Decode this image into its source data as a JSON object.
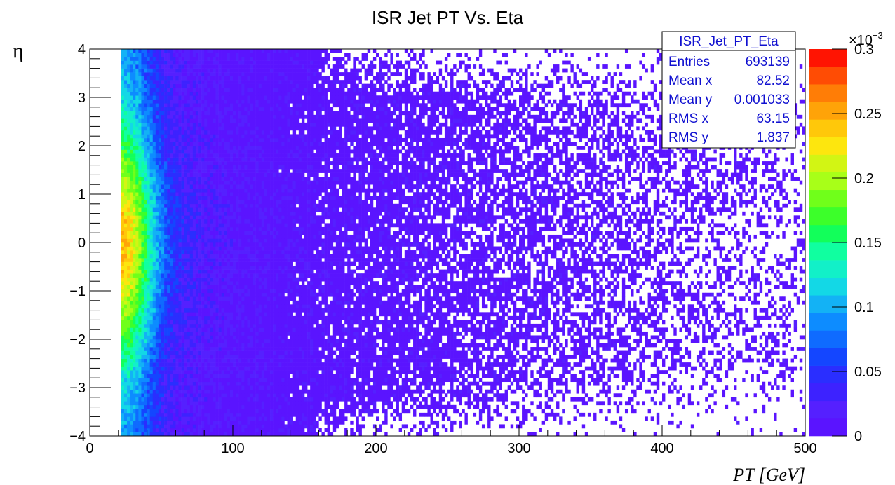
{
  "chart_data": {
    "type": "heatmap",
    "title": "ISR Jet PT Vs. Eta",
    "xlabel": "PT [GeV]",
    "ylabel": "η",
    "xlim": [
      0,
      500
    ],
    "ylim": [
      -4,
      4
    ],
    "zlim": [
      0,
      0.0003
    ],
    "x_ticks": [
      "0",
      "100",
      "200",
      "300",
      "400",
      "500"
    ],
    "y_ticks": [
      "−4",
      "−3",
      "−2",
      "−1",
      "0",
      "1",
      "2",
      "3",
      "4"
    ],
    "z_ticks": [
      "0",
      "0.05",
      "0.1",
      "0.15",
      "0.2",
      "0.25",
      "0.3"
    ],
    "z_exponent_label": "×10",
    "z_exponent_power": "−3",
    "pt_threshold": 22,
    "stats_box": {
      "name": "ISR_Jet_PT_Eta",
      "rows": [
        {
          "label": "Entries",
          "value": "693139"
        },
        {
          "label": "Mean x",
          "value": "82.52"
        },
        {
          "label": "Mean y",
          "value": "0.001033"
        },
        {
          "label": "RMS x",
          "value": "63.15"
        },
        {
          "label": "RMS y",
          "value": "1.837"
        }
      ]
    },
    "palette": [
      "#5a14ff",
      "#5520ff",
      "#3d22ff",
      "#2a2eff",
      "#1446ff",
      "#0f6bff",
      "#0d8cff",
      "#13b2f5",
      "#13d8e6",
      "#12f0c8",
      "#10ffa0",
      "#12ff5a",
      "#3cff2a",
      "#70ff1a",
      "#a8ff18",
      "#d2f514",
      "#fde60e",
      "#ffc80a",
      "#ffa308",
      "#ff7d06",
      "#ff4c04",
      "#ff1402"
    ],
    "colors": {
      "frame": "#000000",
      "stats_text": "#1010d0",
      "background": "#ffffff"
    }
  }
}
